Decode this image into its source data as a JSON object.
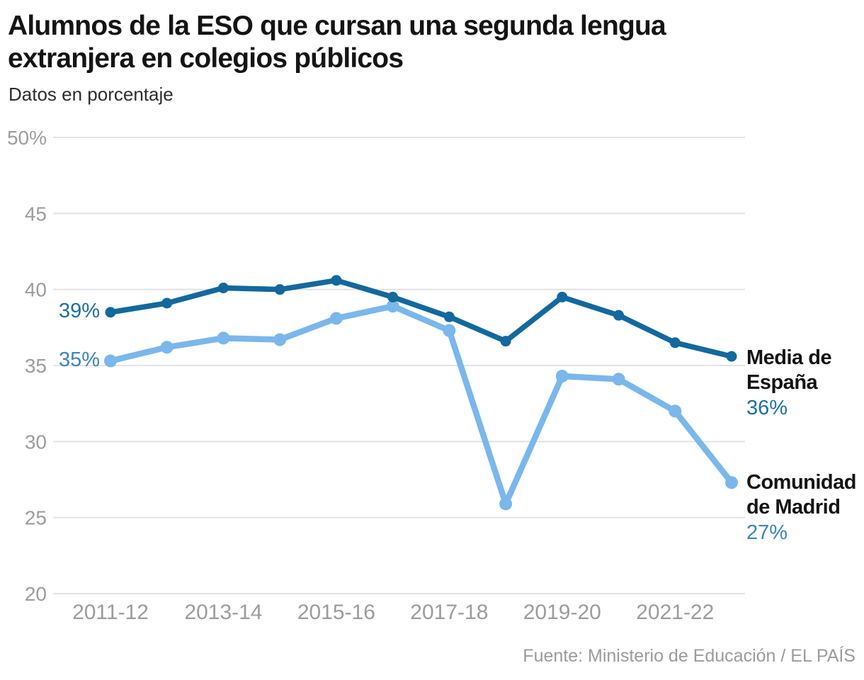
{
  "header": {
    "title": "Alumnos de la ESO que cursan una segunda lengua extranjera en colegios públicos",
    "subtitle": "Datos en porcentaje"
  },
  "source": "Fuente: Ministerio de Educación / EL PAÍS",
  "colors": {
    "media_line": "#12699e",
    "madrid_line": "#79b7ec",
    "media_label": "#1c6fa3",
    "madrid_label": "#3c84c0",
    "axis_text": "#9c9c9c",
    "gridline": "#e2e2e2",
    "title_text": "#141414"
  },
  "chart_data": {
    "type": "line",
    "title": "Alumnos de la ESO que cursan una segunda lengua extranjera en colegios públicos",
    "subtitle": "Datos en porcentaje",
    "xlabel": "",
    "ylabel": "",
    "ylim": [
      20,
      50
    ],
    "grid": "horizontal",
    "legend_position": "right-end-of-line",
    "categories": [
      "2011-12",
      "2012-13",
      "2013-14",
      "2014-15",
      "2015-16",
      "2016-17",
      "2017-18",
      "2018-19",
      "2019-20",
      "2020-21",
      "2021-22",
      "2022-23"
    ],
    "x_tick_labels": [
      "2011-12",
      "2013-14",
      "2015-16",
      "2017-18",
      "2019-20",
      "2021-22"
    ],
    "y_ticks": [
      50,
      45,
      40,
      35,
      30,
      25,
      20
    ],
    "y_tick_labels": [
      "50%",
      "45",
      "40",
      "35",
      "30",
      "25",
      "20"
    ],
    "series": [
      {
        "name": "Media de España",
        "color": "#12699e",
        "label_color": "#1c6fa3",
        "start_label": "39%",
        "end_label": "36%",
        "values": [
          38.5,
          39.1,
          40.1,
          40.0,
          40.6,
          39.5,
          38.2,
          36.6,
          39.5,
          38.3,
          36.5,
          35.6
        ]
      },
      {
        "name": "Comunidad de Madrid",
        "color": "#79b7ec",
        "label_color": "#3c84c0",
        "start_label": "35%",
        "end_label": "27%",
        "values": [
          35.3,
          36.2,
          36.8,
          36.7,
          38.1,
          38.9,
          37.3,
          25.9,
          34.3,
          34.1,
          32.0,
          27.3
        ]
      }
    ]
  }
}
